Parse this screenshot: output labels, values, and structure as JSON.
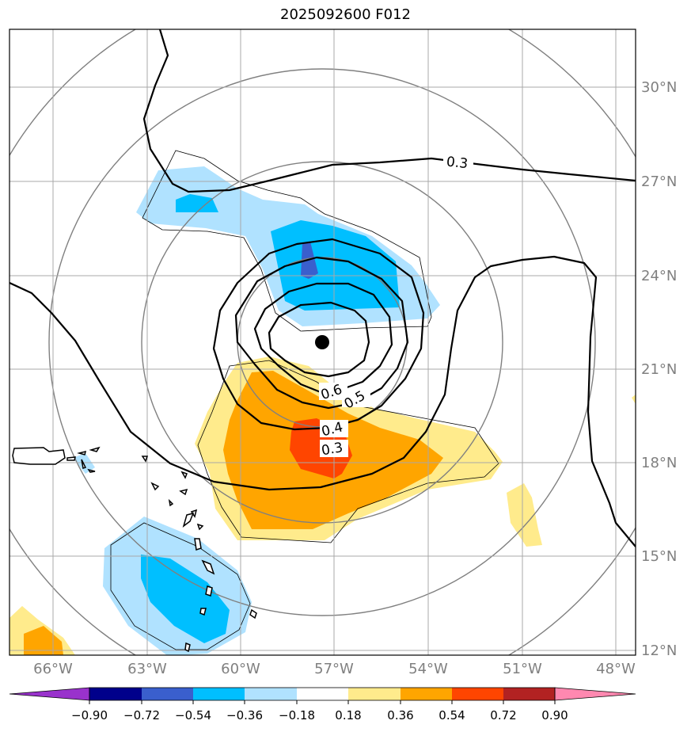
{
  "title": "2025092600 F012",
  "map": {
    "lat_ticks": [
      "30°N",
      "27°N",
      "24°N",
      "21°N",
      "18°N",
      "15°N",
      "12°N"
    ],
    "lon_ticks": [
      "66°W",
      "63°W",
      "60°W",
      "57°W",
      "54°W",
      "51°W",
      "48°W"
    ],
    "contour_labels": [
      "0.3",
      "0.6",
      "0.5",
      "0.4",
      "0.3"
    ],
    "center_marker": "storm-center"
  },
  "colorbar": {
    "labels": [
      "−0.90",
      "−0.72",
      "−0.54",
      "−0.36",
      "−0.18",
      "0.18",
      "0.36",
      "0.54",
      "0.72",
      "0.90"
    ],
    "colors": [
      "#9932cc",
      "#00008b",
      "#3a5fcd",
      "#00bfff",
      "#b0e2ff",
      "#ffffff",
      "#ffeb8c",
      "#ffa500",
      "#ff4500",
      "#b22222",
      "#ff88b0"
    ]
  }
}
